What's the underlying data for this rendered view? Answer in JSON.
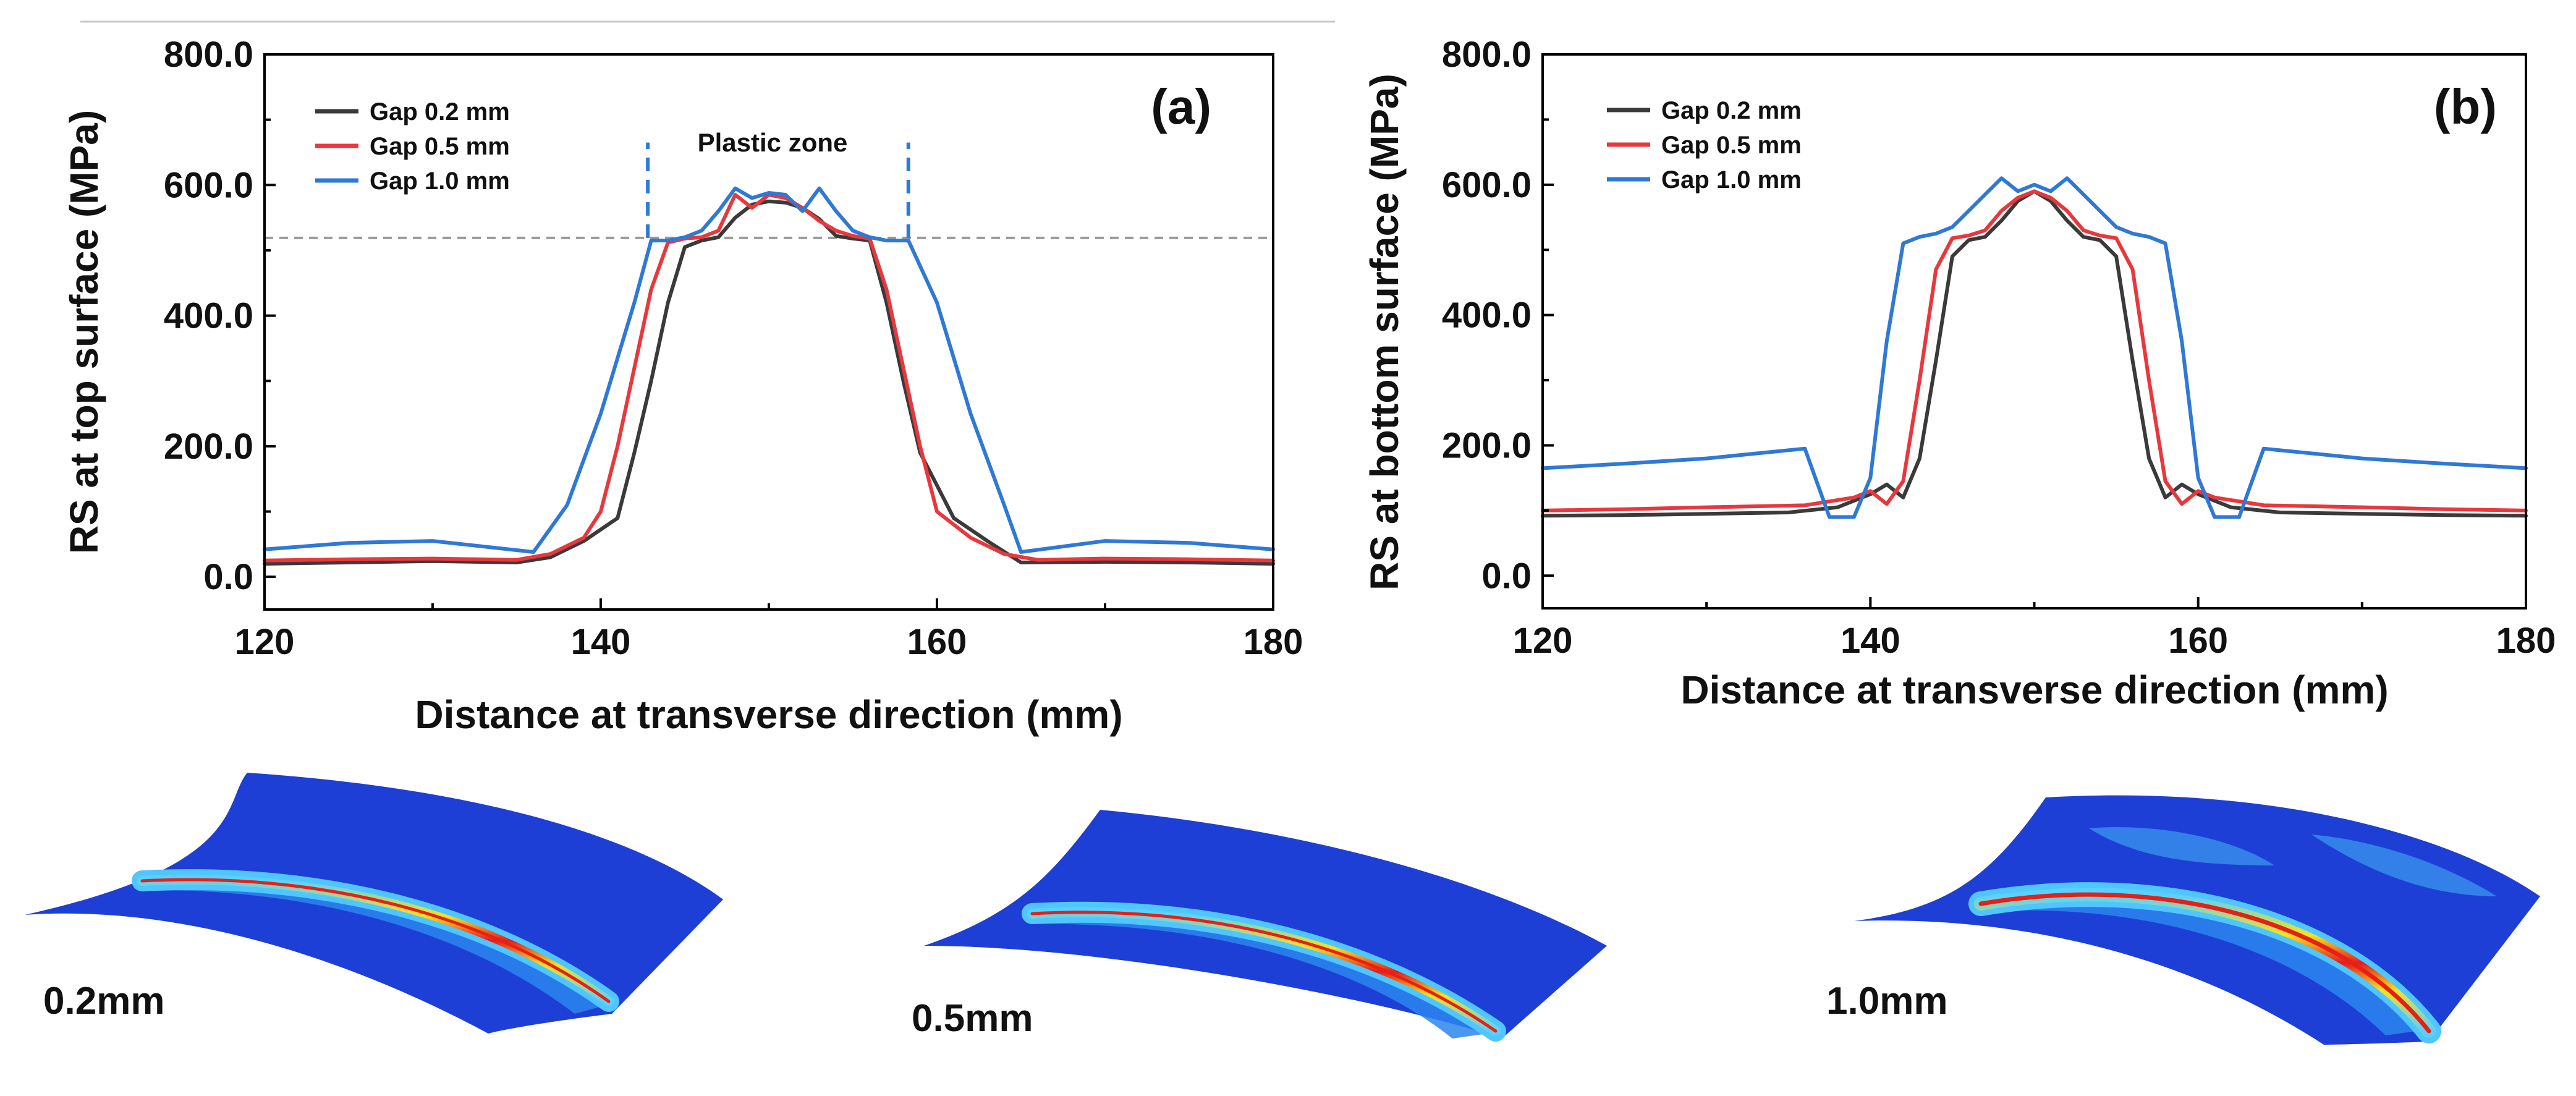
{
  "chart_data": [
    {
      "type": "line",
      "panel_label": "(a)",
      "xlabel": "Distance at transverse direction (mm)",
      "ylabel": "RS at top surface  (MPa)",
      "xlim": [
        120,
        180
      ],
      "ylim": [
        -50,
        800
      ],
      "xticks": [
        120,
        140,
        160,
        180
      ],
      "xtick_labels": [
        "120",
        "140",
        "160",
        "180"
      ],
      "yticks": [
        0,
        200,
        400,
        600,
        800
      ],
      "ytick_labels": [
        "0.0",
        "200.0",
        "400.0",
        "600.0",
        "800.0"
      ],
      "legend": [
        "Gap 0.2 mm",
        "Gap 0.5 mm",
        "Gap 1.0 mm"
      ],
      "annotation": "Plastic zone",
      "reference_line_y": 519,
      "plastic_zone_x": [
        142.8,
        158.3
      ],
      "series": [
        {
          "name": "Gap 0.2 mm",
          "color": "#3a3a3a",
          "x": [
            120,
            125,
            130,
            135,
            137,
            139,
            141,
            142,
            143,
            144,
            145,
            146,
            147,
            148,
            149,
            150,
            151,
            152,
            153,
            154,
            155,
            156,
            157,
            158,
            159,
            161,
            163,
            165,
            170,
            175,
            180
          ],
          "y": [
            20,
            22,
            24,
            22,
            30,
            55,
            90,
            190,
            300,
            420,
            505,
            515,
            520,
            550,
            570,
            575,
            573,
            565,
            548,
            522,
            518,
            515,
            420,
            300,
            190,
            90,
            55,
            22,
            23,
            22,
            20
          ]
        },
        {
          "name": "Gap 0.5 mm",
          "color": "#e8383d",
          "x": [
            120,
            125,
            130,
            135,
            137,
            139,
            140,
            141,
            142,
            143,
            144,
            145,
            146,
            147,
            148,
            149,
            150,
            151,
            152,
            153,
            154,
            155,
            156,
            157,
            158,
            159,
            160,
            162,
            164,
            166,
            170,
            175,
            180
          ],
          "y": [
            25,
            27,
            28,
            26,
            35,
            60,
            100,
            200,
            320,
            440,
            512,
            518,
            520,
            530,
            585,
            565,
            585,
            580,
            565,
            545,
            530,
            522,
            518,
            440,
            320,
            200,
            100,
            60,
            35,
            26,
            28,
            27,
            25
          ]
        },
        {
          "name": "Gap 1.0 mm",
          "color": "#2f79d6",
          "x": [
            120,
            125,
            130,
            136,
            138,
            140,
            142,
            143,
            144,
            145,
            146,
            147,
            148,
            149,
            150,
            151,
            152,
            153,
            154,
            155,
            156,
            157,
            158.3,
            160,
            162,
            164,
            165,
            170,
            175,
            180
          ],
          "y": [
            42,
            52,
            55,
            38,
            110,
            250,
            420,
            515,
            515,
            520,
            530,
            560,
            595,
            580,
            588,
            585,
            560,
            595,
            560,
            530,
            520,
            515,
            515,
            420,
            250,
            110,
            38,
            55,
            52,
            42
          ]
        }
      ]
    },
    {
      "type": "line",
      "panel_label": "(b)",
      "xlabel": "Distance at transverse direction (mm)",
      "ylabel": "RS at bottom surface  (MPa)",
      "xlim": [
        120,
        180
      ],
      "ylim": [
        -50,
        800
      ],
      "xticks": [
        120,
        140,
        160,
        180
      ],
      "xtick_labels": [
        "120",
        "140",
        "160",
        "180"
      ],
      "yticks": [
        0,
        200,
        400,
        600,
        800
      ],
      "ytick_labels": [
        "0.0",
        "200.0",
        "400.0",
        "600.0",
        "800.0"
      ],
      "legend": [
        "Gap 0.2 mm",
        "Gap 0.5 mm",
        "Gap 1.0 mm"
      ],
      "series": [
        {
          "name": "Gap 0.2 mm",
          "color": "#3a3a3a",
          "x": [
            120,
            125,
            130,
            135,
            138,
            140,
            141,
            142,
            143,
            144,
            145,
            146,
            147,
            148,
            149,
            150,
            151,
            152,
            153,
            154,
            155,
            156,
            157,
            158,
            159,
            160,
            162,
            165,
            170,
            175,
            180
          ],
          "y": [
            92,
            93,
            95,
            97,
            105,
            125,
            140,
            120,
            180,
            330,
            490,
            515,
            520,
            545,
            575,
            590,
            575,
            545,
            520,
            515,
            490,
            330,
            180,
            120,
            140,
            125,
            105,
            97,
            95,
            93,
            92
          ]
        },
        {
          "name": "Gap 0.5 mm",
          "color": "#e8383d",
          "x": [
            120,
            125,
            130,
            136,
            139,
            140,
            141,
            142,
            143,
            144,
            145,
            146,
            147,
            148,
            149,
            150,
            151,
            152,
            153,
            154,
            155,
            156,
            157,
            158,
            159,
            160,
            161,
            164,
            170,
            175,
            180
          ],
          "y": [
            100,
            102,
            105,
            108,
            120,
            130,
            110,
            145,
            300,
            470,
            518,
            522,
            530,
            560,
            580,
            590,
            580,
            560,
            530,
            522,
            518,
            470,
            300,
            145,
            110,
            130,
            120,
            108,
            105,
            102,
            100
          ]
        },
        {
          "name": "Gap 1.0 mm",
          "color": "#2f79d6",
          "x": [
            120,
            125,
            130,
            136,
            137.5,
            139,
            140,
            141,
            142,
            143,
            144,
            145,
            146,
            147,
            148,
            149,
            150,
            151,
            152,
            153,
            154,
            155,
            156,
            157,
            158,
            159,
            160,
            161,
            162.5,
            164,
            170,
            175,
            180
          ],
          "y": [
            165,
            172,
            180,
            195,
            90,
            90,
            150,
            360,
            510,
            520,
            525,
            535,
            560,
            585,
            610,
            590,
            600,
            590,
            610,
            585,
            560,
            535,
            525,
            520,
            510,
            360,
            150,
            90,
            90,
            195,
            180,
            172,
            165
          ]
        }
      ]
    }
  ],
  "plates": [
    {
      "label": "0.2mm"
    },
    {
      "label": "0.5mm"
    },
    {
      "label": "1.0mm"
    }
  ]
}
